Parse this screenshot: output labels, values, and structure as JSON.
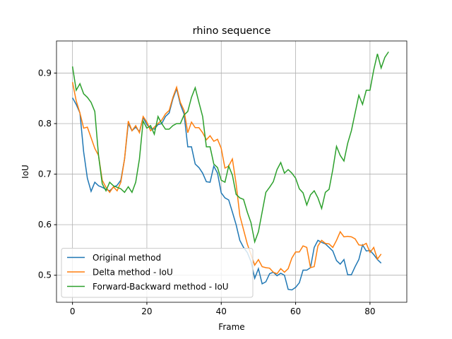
{
  "chart_data": {
    "type": "line",
    "title": "rhino sequence",
    "x_label": "Frame",
    "y_label": "IoU",
    "xlim": [
      -4.3,
      89.9
    ],
    "ylim": [
      0.4465,
      0.9635
    ],
    "xticks": [
      0,
      20,
      40,
      60,
      80
    ],
    "yticks": [
      0.5,
      0.6,
      0.7,
      0.8,
      0.9
    ],
    "grid": true,
    "legend_position": "lower left",
    "series": [
      {
        "name": "Original method",
        "color": "#1f77b4",
        "x": [
          0,
          1,
          2,
          3,
          4,
          5,
          6,
          7,
          8,
          9,
          10,
          11,
          12,
          13,
          14,
          15,
          16,
          17,
          18,
          19,
          20,
          21,
          22,
          23,
          24,
          25,
          26,
          27,
          28,
          29,
          30,
          31,
          32,
          33,
          34,
          35,
          36,
          37,
          38,
          39,
          40,
          41,
          42,
          43,
          44,
          45,
          46,
          47,
          48,
          49,
          50,
          51,
          52,
          53,
          54,
          55,
          56,
          57,
          58,
          59,
          60,
          61,
          62,
          63,
          64,
          65,
          66,
          67,
          68,
          69,
          70,
          71,
          72,
          73,
          74,
          75,
          76,
          77,
          78,
          79,
          80,
          81,
          82,
          83
        ],
        "values": [
          0.851,
          0.838,
          0.821,
          0.744,
          0.692,
          0.666,
          0.684,
          0.677,
          0.674,
          0.67,
          0.667,
          0.674,
          0.678,
          0.688,
          0.73,
          0.8,
          0.786,
          0.793,
          0.784,
          0.812,
          0.798,
          0.791,
          0.789,
          0.798,
          0.8,
          0.814,
          0.821,
          0.849,
          0.869,
          0.838,
          0.819,
          0.754,
          0.754,
          0.72,
          0.713,
          0.702,
          0.685,
          0.684,
          0.716,
          0.702,
          0.663,
          0.653,
          0.649,
          0.625,
          0.6,
          0.569,
          0.555,
          0.545,
          0.527,
          0.494,
          0.513,
          0.483,
          0.487,
          0.503,
          0.506,
          0.499,
          0.504,
          0.5,
          0.472,
          0.471,
          0.476,
          0.485,
          0.51,
          0.51,
          0.515,
          0.555,
          0.569,
          0.565,
          0.562,
          0.555,
          0.548,
          0.529,
          0.522,
          0.531,
          0.501,
          0.501,
          0.517,
          0.531,
          0.56,
          0.548,
          0.549,
          0.541,
          0.531,
          0.524
        ]
      },
      {
        "name": "Delta method - IoU",
        "color": "#ff7f0e",
        "x": [
          0,
          1,
          2,
          3,
          4,
          5,
          6,
          7,
          8,
          9,
          10,
          11,
          12,
          13,
          14,
          15,
          16,
          17,
          18,
          19,
          20,
          21,
          22,
          23,
          24,
          25,
          26,
          27,
          28,
          29,
          30,
          31,
          32,
          33,
          34,
          35,
          36,
          37,
          38,
          39,
          40,
          41,
          42,
          43,
          44,
          45,
          46,
          47,
          48,
          49,
          50,
          51,
          52,
          53,
          54,
          55,
          56,
          57,
          58,
          59,
          60,
          61,
          62,
          63,
          64,
          65,
          66,
          67,
          68,
          69,
          70,
          71,
          72,
          73,
          74,
          75,
          76,
          77,
          78,
          79,
          80,
          81,
          82,
          83
        ],
        "values": [
          0.882,
          0.845,
          0.821,
          0.791,
          0.793,
          0.772,
          0.751,
          0.737,
          0.688,
          0.674,
          0.664,
          0.675,
          0.667,
          0.684,
          0.73,
          0.805,
          0.786,
          0.796,
          0.782,
          0.814,
          0.803,
          0.786,
          0.793,
          0.8,
          0.807,
          0.819,
          0.826,
          0.852,
          0.872,
          0.842,
          0.826,
          0.782,
          0.803,
          0.792,
          0.792,
          0.782,
          0.768,
          0.776,
          0.765,
          0.769,
          0.751,
          0.712,
          0.716,
          0.73,
          0.681,
          0.618,
          0.59,
          0.562,
          0.541,
          0.52,
          0.531,
          0.517,
          0.515,
          0.514,
          0.506,
          0.503,
          0.513,
          0.506,
          0.513,
          0.534,
          0.546,
          0.546,
          0.558,
          0.555,
          0.515,
          0.517,
          0.558,
          0.569,
          0.563,
          0.562,
          0.555,
          0.569,
          0.586,
          0.576,
          0.577,
          0.576,
          0.572,
          0.56,
          0.559,
          0.563,
          0.545,
          0.555,
          0.532,
          0.542
        ]
      },
      {
        "name": "Forward-Backward method - IoU",
        "color": "#2ca02c",
        "x": [
          0,
          1,
          2,
          3,
          4,
          5,
          6,
          7,
          8,
          9,
          10,
          11,
          12,
          13,
          14,
          15,
          16,
          17,
          18,
          19,
          20,
          21,
          22,
          23,
          24,
          25,
          26,
          27,
          28,
          29,
          30,
          31,
          32,
          33,
          34,
          35,
          36,
          37,
          38,
          39,
          40,
          41,
          42,
          43,
          44,
          45,
          46,
          47,
          48,
          49,
          50,
          51,
          52,
          53,
          54,
          55,
          56,
          57,
          58,
          59,
          60,
          61,
          62,
          63,
          64,
          65,
          66,
          67,
          68,
          69,
          70,
          71,
          72,
          73,
          74,
          75,
          76,
          77,
          78,
          79,
          80,
          81,
          82,
          83,
          84,
          85
        ],
        "values": [
          0.913,
          0.866,
          0.879,
          0.859,
          0.852,
          0.842,
          0.824,
          0.737,
          0.681,
          0.667,
          0.684,
          0.677,
          0.674,
          0.671,
          0.664,
          0.675,
          0.664,
          0.684,
          0.73,
          0.805,
          0.791,
          0.796,
          0.779,
          0.814,
          0.8,
          0.789,
          0.789,
          0.796,
          0.8,
          0.8,
          0.817,
          0.824,
          0.852,
          0.871,
          0.842,
          0.814,
          0.754,
          0.754,
          0.72,
          0.713,
          0.688,
          0.684,
          0.716,
          0.698,
          0.66,
          0.653,
          0.65,
          0.625,
          0.604,
          0.566,
          0.586,
          0.625,
          0.664,
          0.674,
          0.685,
          0.709,
          0.723,
          0.702,
          0.709,
          0.702,
          0.692,
          0.671,
          0.663,
          0.639,
          0.659,
          0.667,
          0.653,
          0.632,
          0.664,
          0.67,
          0.709,
          0.755,
          0.737,
          0.726,
          0.761,
          0.786,
          0.821,
          0.856,
          0.838,
          0.866,
          0.866,
          0.906,
          0.938,
          0.91,
          0.931,
          0.942
        ]
      }
    ]
  }
}
